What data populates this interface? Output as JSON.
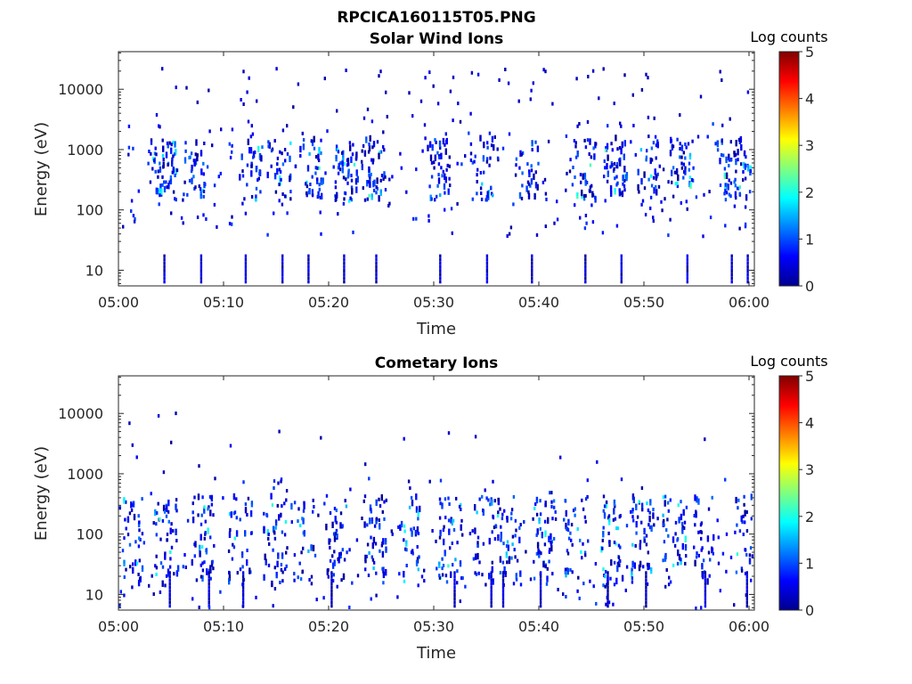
{
  "figure": {
    "file_title": "RPCICA160115T05.PNG"
  },
  "chart_data": [
    {
      "type": "heatmap",
      "title": "Solar Wind Ions",
      "xlabel": "Time",
      "ylabel": "Energy (eV)",
      "x_range": [
        "05:00",
        "06:00"
      ],
      "x_ticks": [
        "05:00",
        "05:10",
        "05:20",
        "05:30",
        "05:40",
        "05:50",
        "06:00"
      ],
      "y_scale": "log",
      "y_range": [
        5.5,
        42000
      ],
      "y_ticks": [
        10,
        100,
        1000,
        10000
      ],
      "y_tick_labels": [
        "10",
        "100",
        "1000",
        "10000"
      ],
      "colorbar": {
        "label": "Log counts",
        "range": [
          0,
          5
        ],
        "ticks": [
          "0",
          "1",
          "2",
          "3",
          "4",
          "5"
        ],
        "colormap": "jet"
      },
      "cluster_times_min": [
        4.3,
        7.2,
        12.5,
        15.2,
        18.3,
        21.6,
        24.1,
        30.4,
        34.5,
        38.8,
        44.2,
        47.2,
        50.3,
        53.5,
        57.8,
        59.5
      ],
      "sparse_distribution": {
        "core_energy_eV": [
          150,
          1600
        ],
        "typical_log_counts": [
          0.1,
          1.2
        ],
        "peak_log_counts": 2.3,
        "low_energy_streaks_eV": [
          6,
          20
        ],
        "high_energy_scatter_eV": [
          2500,
          25000
        ]
      }
    },
    {
      "type": "heatmap",
      "title": "Cometary Ions",
      "xlabel": "Time",
      "ylabel": "Energy (eV)",
      "x_range": [
        "05:00",
        "06:00"
      ],
      "x_ticks": [
        "05:00",
        "05:10",
        "05:20",
        "05:30",
        "05:40",
        "05:50",
        "06:00"
      ],
      "y_scale": "log",
      "y_range": [
        5.5,
        42000
      ],
      "y_ticks": [
        10,
        100,
        1000,
        10000
      ],
      "y_tick_labels": [
        "10",
        "100",
        "1000",
        "10000"
      ],
      "colorbar": {
        "label": "Log counts",
        "range": [
          0,
          5
        ],
        "ticks": [
          "0",
          "1",
          "2",
          "3",
          "4",
          "5"
        ],
        "colormap": "jet"
      },
      "cluster_times_min": [
        1.4,
        4.5,
        8.0,
        11.5,
        14.8,
        17.4,
        20.6,
        24.3,
        27.8,
        31.5,
        34.8,
        37.1,
        40.4,
        43.3,
        46.8,
        49.7,
        52.8,
        55.5,
        59.6
      ],
      "sparse_distribution": {
        "core_energy_eV": [
          15,
          450
        ],
        "typical_log_counts": [
          0.1,
          1.2
        ],
        "peak_log_counts": 2.2,
        "low_energy_streaks_eV": [
          6,
          25
        ],
        "high_energy_scatter_eV": [
          1000,
          13000
        ]
      }
    }
  ]
}
